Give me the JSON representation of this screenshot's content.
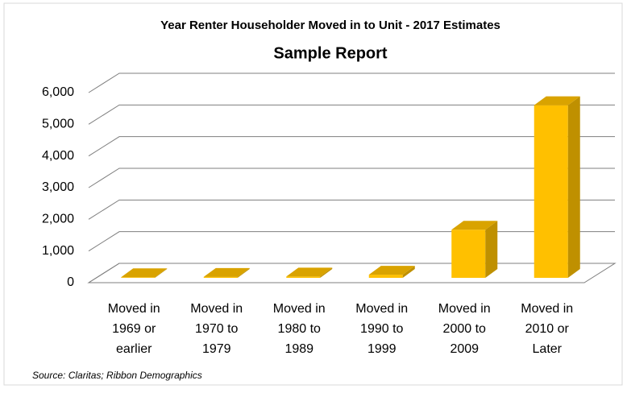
{
  "chart_data": {
    "type": "bar3d",
    "title": "Year Renter Householder Moved in to Unit - 2017 Estimates",
    "subtitle": "Sample Report",
    "categories": [
      "Moved in 1969 or earlier",
      "Moved in 1970 to 1979",
      "Moved in 1980 to 1989",
      "Moved in 1990 to 1999",
      "Moved in 2000 to 2009",
      "Moved in 2010 or Later"
    ],
    "values": [
      20,
      30,
      40,
      100,
      1520,
      5450
    ],
    "color": "#ffc000",
    "ylim": [
      0,
      6000
    ],
    "yticks": [
      0,
      {
        "value": 1000,
        "label": "1,000"
      },
      {
        "value": 2000,
        "label": "2,000"
      },
      {
        "value": 3000,
        "label": "3,000"
      },
      {
        "value": 4000,
        "label": "4,000"
      },
      {
        "value": 5000,
        "label": "5,000"
      },
      {
        "value": 6000,
        "label": "6,000"
      }
    ],
    "grid": true,
    "source": "Source: Claritas; Ribbon Demographics"
  }
}
